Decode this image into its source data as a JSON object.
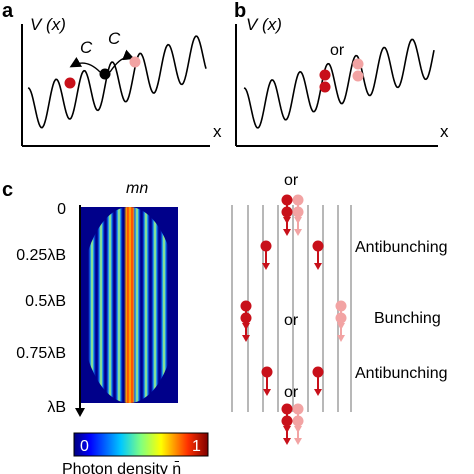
{
  "panels": {
    "a": {
      "letter": "a",
      "ylabel": "V (x)",
      "xlabel": "x",
      "c1": "C",
      "c2": "C"
    },
    "b": {
      "letter": "b",
      "ylabel": "V (x)",
      "xlabel": "x",
      "or": "or"
    },
    "c": {
      "letter": "c",
      "title": "mn",
      "yticks": [
        "0",
        "0.25λB",
        "0.5λB",
        "0.75λB",
        "λB"
      ],
      "colorbar_min": "0",
      "colorbar_max": "1",
      "colorbar_label": "Photon density n̄",
      "or_top": "or",
      "or_mid": "or",
      "or_bottom": "or",
      "label_antibunching_1": "Antibunching",
      "label_bunching": "Bunching",
      "label_antibunching_2": "Antibunching"
    }
  },
  "colors": {
    "dark_red": "#c8101a",
    "light_red": "#f2a3a3",
    "black": "#000000",
    "line_grey": "#b8b8b8"
  }
}
